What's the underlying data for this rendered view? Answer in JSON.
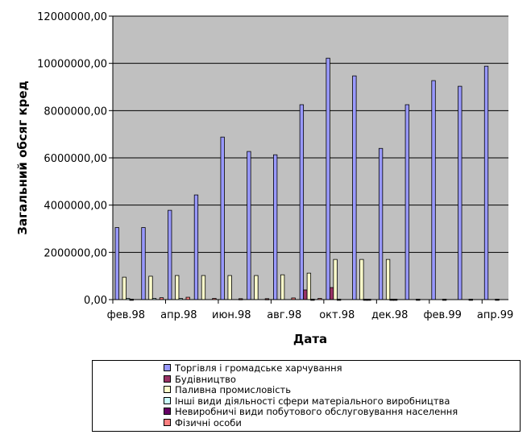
{
  "chart_data": {
    "type": "bar",
    "title": "",
    "xlabel": "Дата",
    "ylabel": "Загальний обсяг кред",
    "ylim": [
      0,
      12000000
    ],
    "yticks": [
      "0,00",
      "2000000,00",
      "4000000,00",
      "6000000,00",
      "8000000,00",
      "10000000,00",
      "12000000,00"
    ],
    "grid": true,
    "legend_position": "bottom",
    "categories": [
      "фев.98",
      "",
      "апр.98",
      "",
      "июн.98",
      "",
      "авг.98",
      "",
      "окт.98",
      "",
      "дек.98",
      "",
      "фев.99",
      "",
      "апр.99"
    ],
    "series": [
      {
        "name": "Торгівля і громадське харчування",
        "color": "#9999ff",
        "values": [
          3050000,
          3050000,
          3780000,
          4430000,
          6880000,
          6270000,
          6130000,
          8250000,
          10220000,
          9470000,
          6400000,
          8250000,
          9270000,
          9030000,
          9880000
        ]
      },
      {
        "name": "Будівництво",
        "color": "#993366",
        "values": [
          0,
          0,
          0,
          0,
          0,
          0,
          0,
          410000,
          510000,
          0,
          0,
          0,
          0,
          0,
          0
        ]
      },
      {
        "name": "Паливна промисловість",
        "color": "#ffffcc",
        "values": [
          950000,
          990000,
          1020000,
          1020000,
          1020000,
          1020000,
          1050000,
          1120000,
          1700000,
          1700000,
          1700000,
          0,
          0,
          0,
          0
        ]
      },
      {
        "name": "Інші види діяльності сфери матеріального виробництва",
        "color": "#ccffff",
        "values": [
          50000,
          50000,
          50000,
          0,
          0,
          0,
          0,
          20000,
          20000,
          20000,
          20000,
          20000,
          20000,
          20000,
          20000
        ]
      },
      {
        "name": "Невиробничі види побутового обслуговування населення",
        "color": "#660066",
        "values": [
          20000,
          0,
          0,
          0,
          0,
          0,
          0,
          0,
          0,
          20000,
          20000,
          0,
          0,
          0,
          0
        ]
      },
      {
        "name": "Фізичні особи",
        "color": "#ff8080",
        "values": [
          0,
          80000,
          100000,
          50000,
          40000,
          40000,
          70000,
          50000,
          0,
          0,
          0,
          0,
          0,
          0,
          0
        ]
      }
    ]
  }
}
